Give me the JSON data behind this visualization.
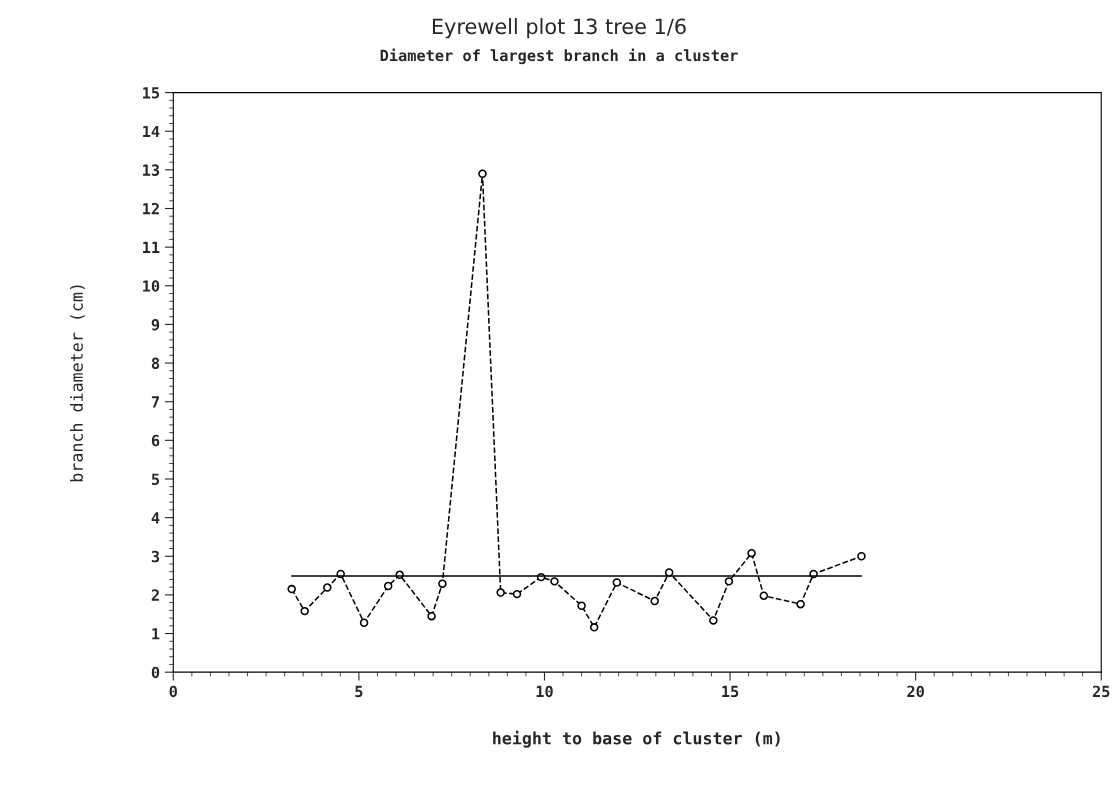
{
  "chart_data": {
    "type": "line",
    "title": "Eyrewell plot 13 tree 1/6",
    "subtitle": "Diameter of largest branch in a cluster",
    "xlabel": "height to base of cluster (m)",
    "ylabel": "branch diameter (cm)",
    "series": [
      {
        "color": "#000000",
        "marker": "circle",
        "line_style": "dashed",
        "x": [
          3.19,
          3.54,
          4.15,
          4.51,
          5.14,
          5.79,
          6.1,
          6.96,
          7.25,
          8.33,
          8.82,
          9.26,
          9.91,
          10.27,
          11.0,
          11.34,
          11.95,
          12.97,
          13.36,
          14.55,
          14.97,
          15.58,
          15.91,
          16.9,
          17.25,
          18.54
        ],
        "values": [
          2.15,
          1.58,
          2.19,
          2.54,
          1.28,
          2.23,
          2.52,
          1.45,
          2.29,
          12.9,
          2.06,
          2.02,
          2.46,
          2.35,
          1.72,
          1.16,
          2.32,
          1.84,
          2.58,
          1.34,
          2.35,
          3.08,
          1.98,
          1.76,
          2.54,
          3.0
        ]
      },
      {
        "color": "#000000",
        "marker": "none",
        "line_style": "solid",
        "x": [
          3.19,
          18.54
        ],
        "values": [
          2.49,
          2.49
        ]
      }
    ],
    "xlim": [
      0,
      25
    ],
    "xticks": [
      0,
      5,
      10,
      15,
      20,
      25
    ],
    "ylim": [
      0,
      15
    ],
    "yticks": [
      0,
      1,
      2,
      3,
      4,
      5,
      6,
      7,
      8,
      9,
      10,
      11,
      12,
      13,
      14,
      15
    ],
    "grid": false,
    "legend": false
  }
}
